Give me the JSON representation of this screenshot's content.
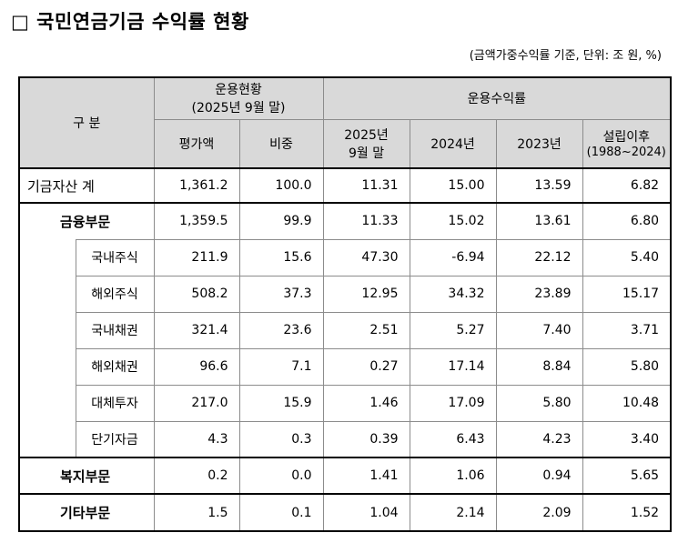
{
  "title": "□ 국민연금기금 수익률 현황",
  "unit_note": "(금액가중수익률 기준, 단위: 조 원, %)",
  "header": {
    "category": "구 분",
    "status_group": "운용현황",
    "status_group_sub": "(2025년 9월 말)",
    "return_group": "운용수익률",
    "amount": "평가액",
    "weight": "비중",
    "y2025_line1": "2025년",
    "y2025_line2": "9월 말",
    "y2024": "2024년",
    "y2023": "2023년",
    "since_line1": "설립이후",
    "since_line2": "(1988~2024)"
  },
  "rows": [
    {
      "label": "기금자산 계",
      "amount": "1,361.2",
      "weight": "100.0",
      "r2025": "11.31",
      "r2024": "15.00",
      "r2023": "13.59",
      "since": "6.82"
    },
    {
      "label": "금융부문",
      "amount": "1,359.5",
      "weight": "99.9",
      "r2025": "11.33",
      "r2024": "15.02",
      "r2023": "13.61",
      "since": "6.80"
    },
    {
      "label": "국내주식",
      "amount": "211.9",
      "weight": "15.6",
      "r2025": "47.30",
      "r2024": "-6.94",
      "r2023": "22.12",
      "since": "5.40"
    },
    {
      "label": "해외주식",
      "amount": "508.2",
      "weight": "37.3",
      "r2025": "12.95",
      "r2024": "34.32",
      "r2023": "23.89",
      "since": "15.17"
    },
    {
      "label": "국내채권",
      "amount": "321.4",
      "weight": "23.6",
      "r2025": "2.51",
      "r2024": "5.27",
      "r2023": "7.40",
      "since": "3.71"
    },
    {
      "label": "해외채권",
      "amount": "96.6",
      "weight": "7.1",
      "r2025": "0.27",
      "r2024": "17.14",
      "r2023": "8.84",
      "since": "5.80"
    },
    {
      "label": "대체투자",
      "amount": "217.0",
      "weight": "15.9",
      "r2025": "1.46",
      "r2024": "17.09",
      "r2023": "5.80",
      "since": "10.48"
    },
    {
      "label": "단기자금",
      "amount": "4.3",
      "weight": "0.3",
      "r2025": "0.39",
      "r2024": "6.43",
      "r2023": "4.23",
      "since": "3.40"
    },
    {
      "label": "복지부문",
      "amount": "0.2",
      "weight": "0.0",
      "r2025": "1.41",
      "r2024": "1.06",
      "r2023": "0.94",
      "since": "5.65"
    },
    {
      "label": "기타부문",
      "amount": "1.5",
      "weight": "0.1",
      "r2025": "1.04",
      "r2024": "2.14",
      "r2023": "2.09",
      "since": "1.52"
    }
  ]
}
